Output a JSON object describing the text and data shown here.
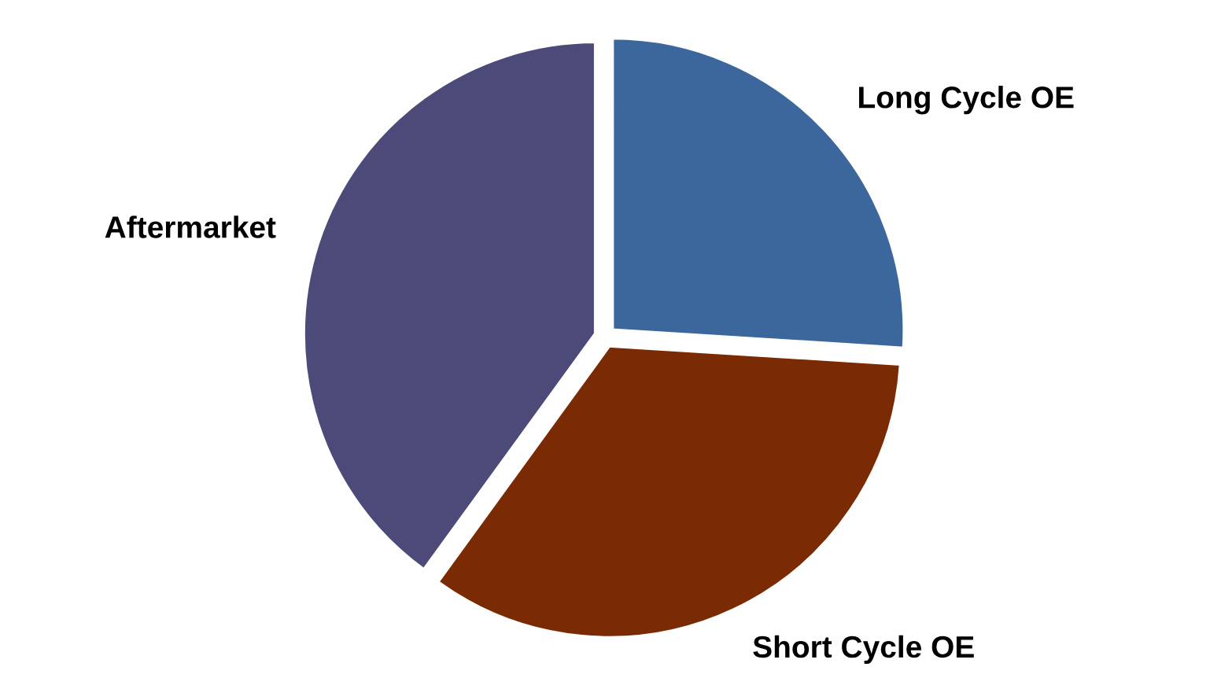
{
  "chart_data": {
    "type": "pie",
    "categories": [
      "Long Cycle OE",
      "Short Cycle OE",
      "Aftermarket"
    ],
    "values": [
      26,
      34,
      40
    ],
    "colors": [
      "#3b679c",
      "#7a2b04",
      "#4b4a78"
    ]
  }
}
